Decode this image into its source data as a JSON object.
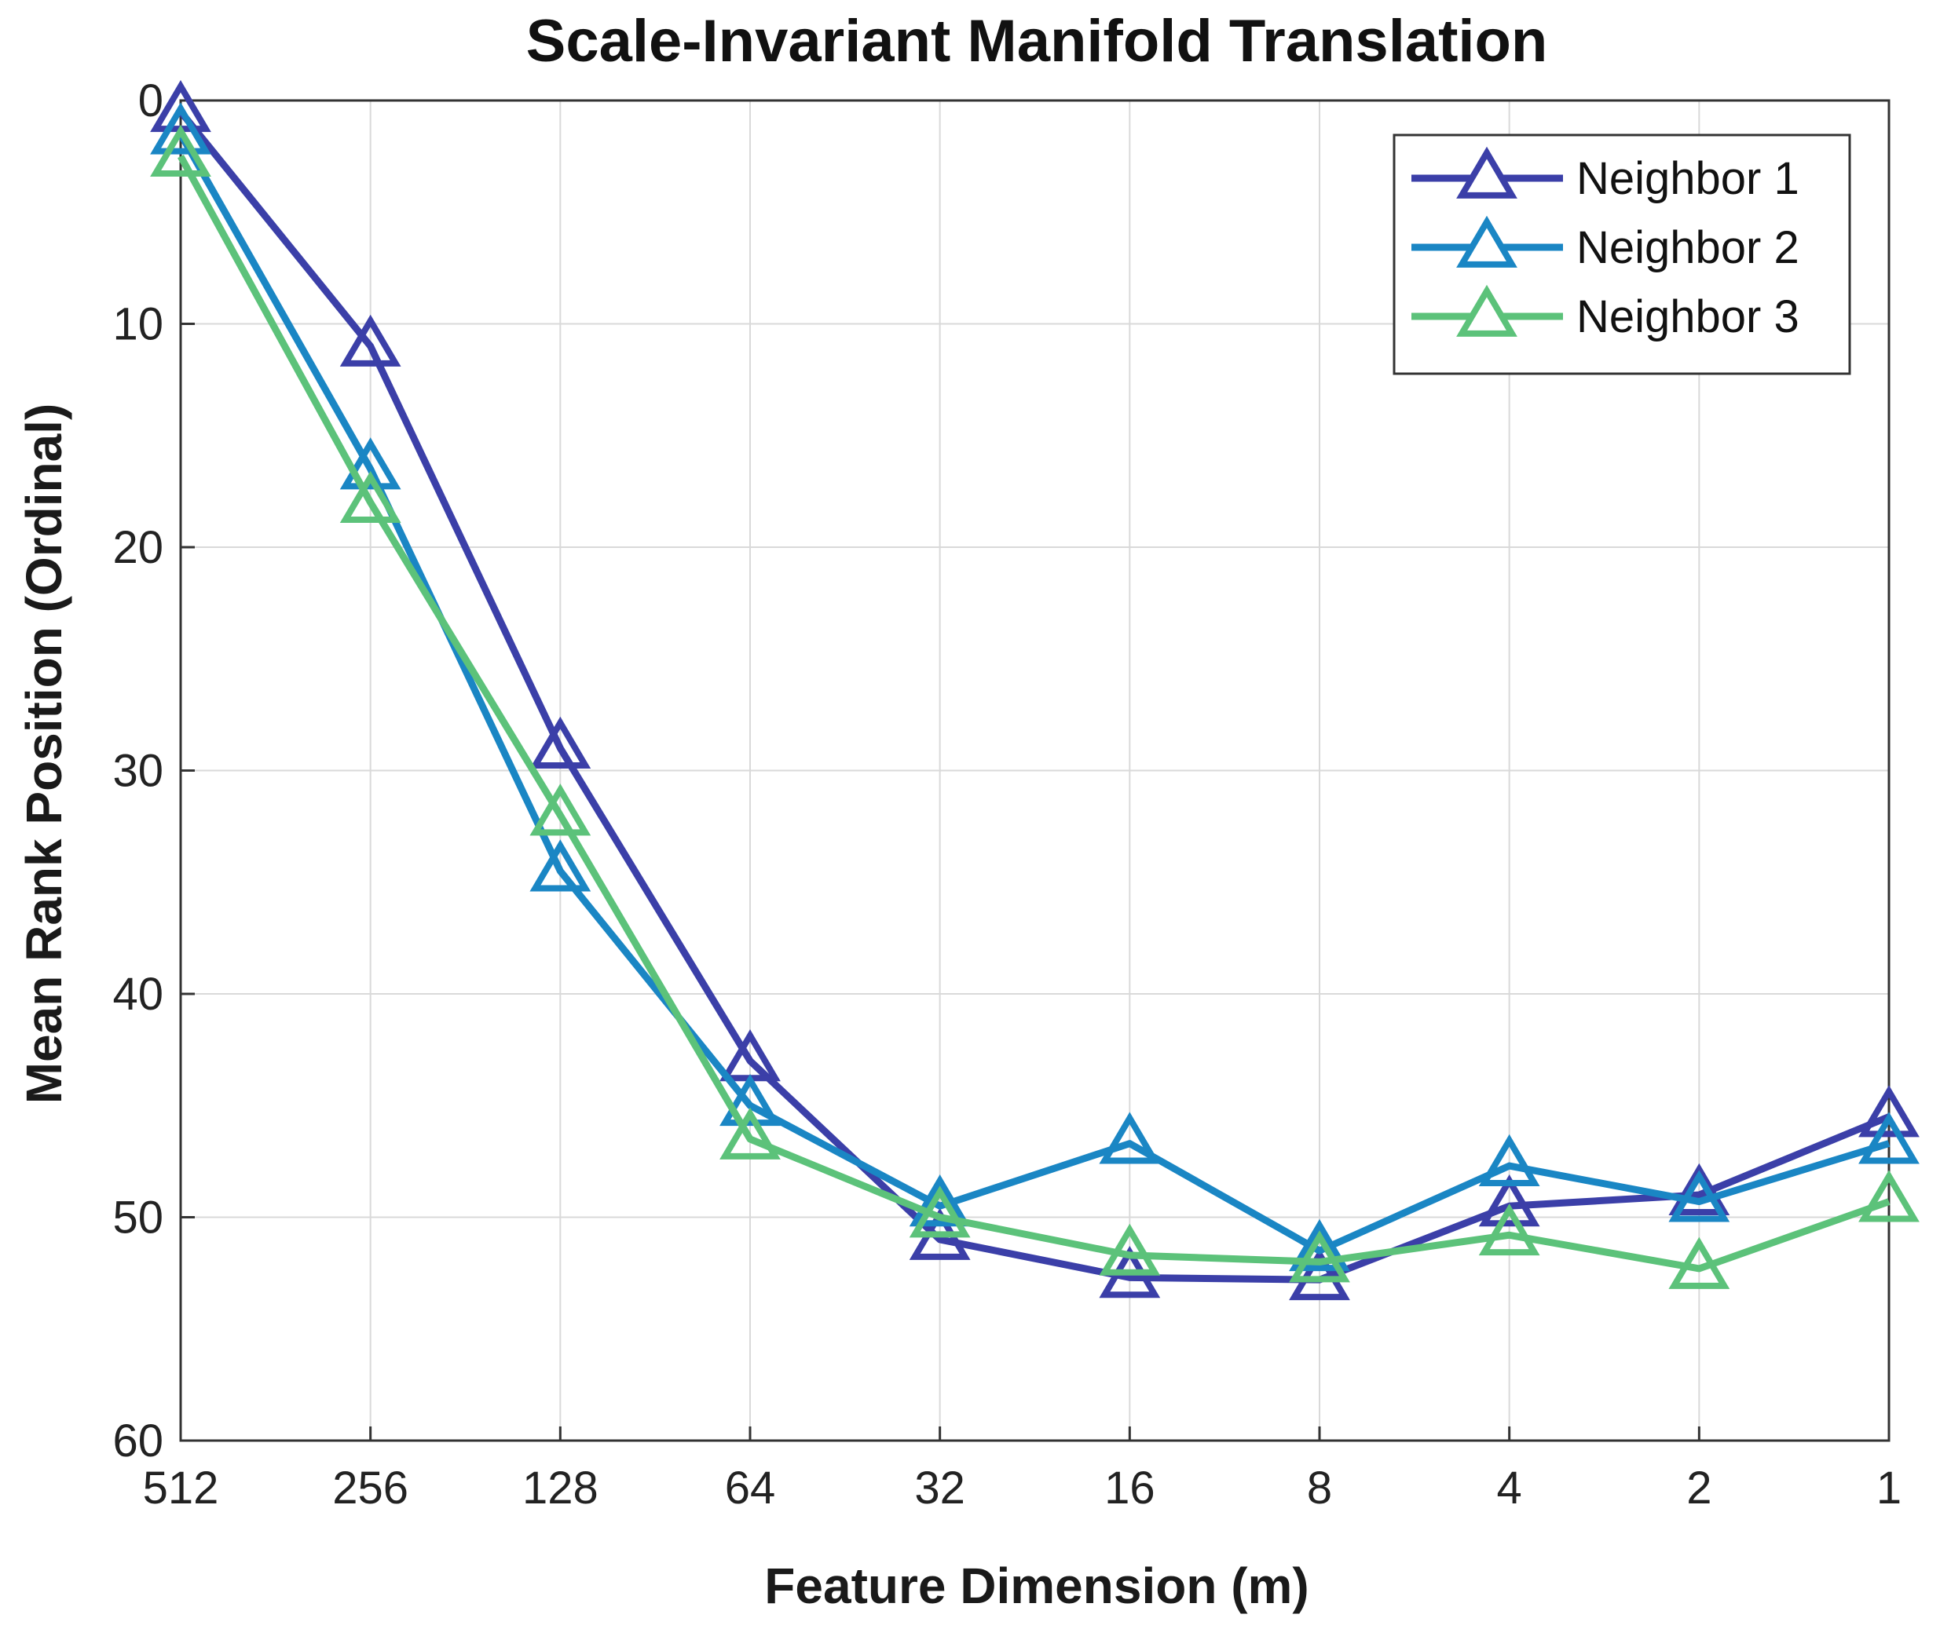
{
  "chart_data": {
    "type": "line",
    "title": "Scale-Invariant Manifold Translation",
    "xlabel": "Feature Dimension (m)",
    "ylabel": "Mean Rank Position (Ordinal)",
    "categories": [
      "512",
      "256",
      "128",
      "64",
      "32",
      "16",
      "8",
      "4",
      "2",
      "1"
    ],
    "ylim": [
      0,
      60
    ],
    "y_reversed": true,
    "yticks": [
      0,
      10,
      20,
      30,
      40,
      50,
      60
    ],
    "grid": true,
    "legend_position": "top-right",
    "marker": "triangle-open",
    "series": [
      {
        "name": "Neighbor 1",
        "color": "#3b3fa8",
        "values": [
          0.5,
          11,
          29,
          43,
          51,
          52.7,
          52.8,
          49.5,
          49,
          45.5
        ]
      },
      {
        "name": "Neighbor 2",
        "color": "#1a86c4",
        "values": [
          1.5,
          16.5,
          34.5,
          45,
          49.5,
          46.7,
          51.5,
          47.7,
          49.3,
          46.7
        ]
      },
      {
        "name": "Neighbor 3",
        "color": "#5cc27a",
        "values": [
          2.5,
          18,
          32,
          46.5,
          50,
          51.7,
          52,
          50.8,
          52.3,
          49.3
        ]
      }
    ]
  }
}
